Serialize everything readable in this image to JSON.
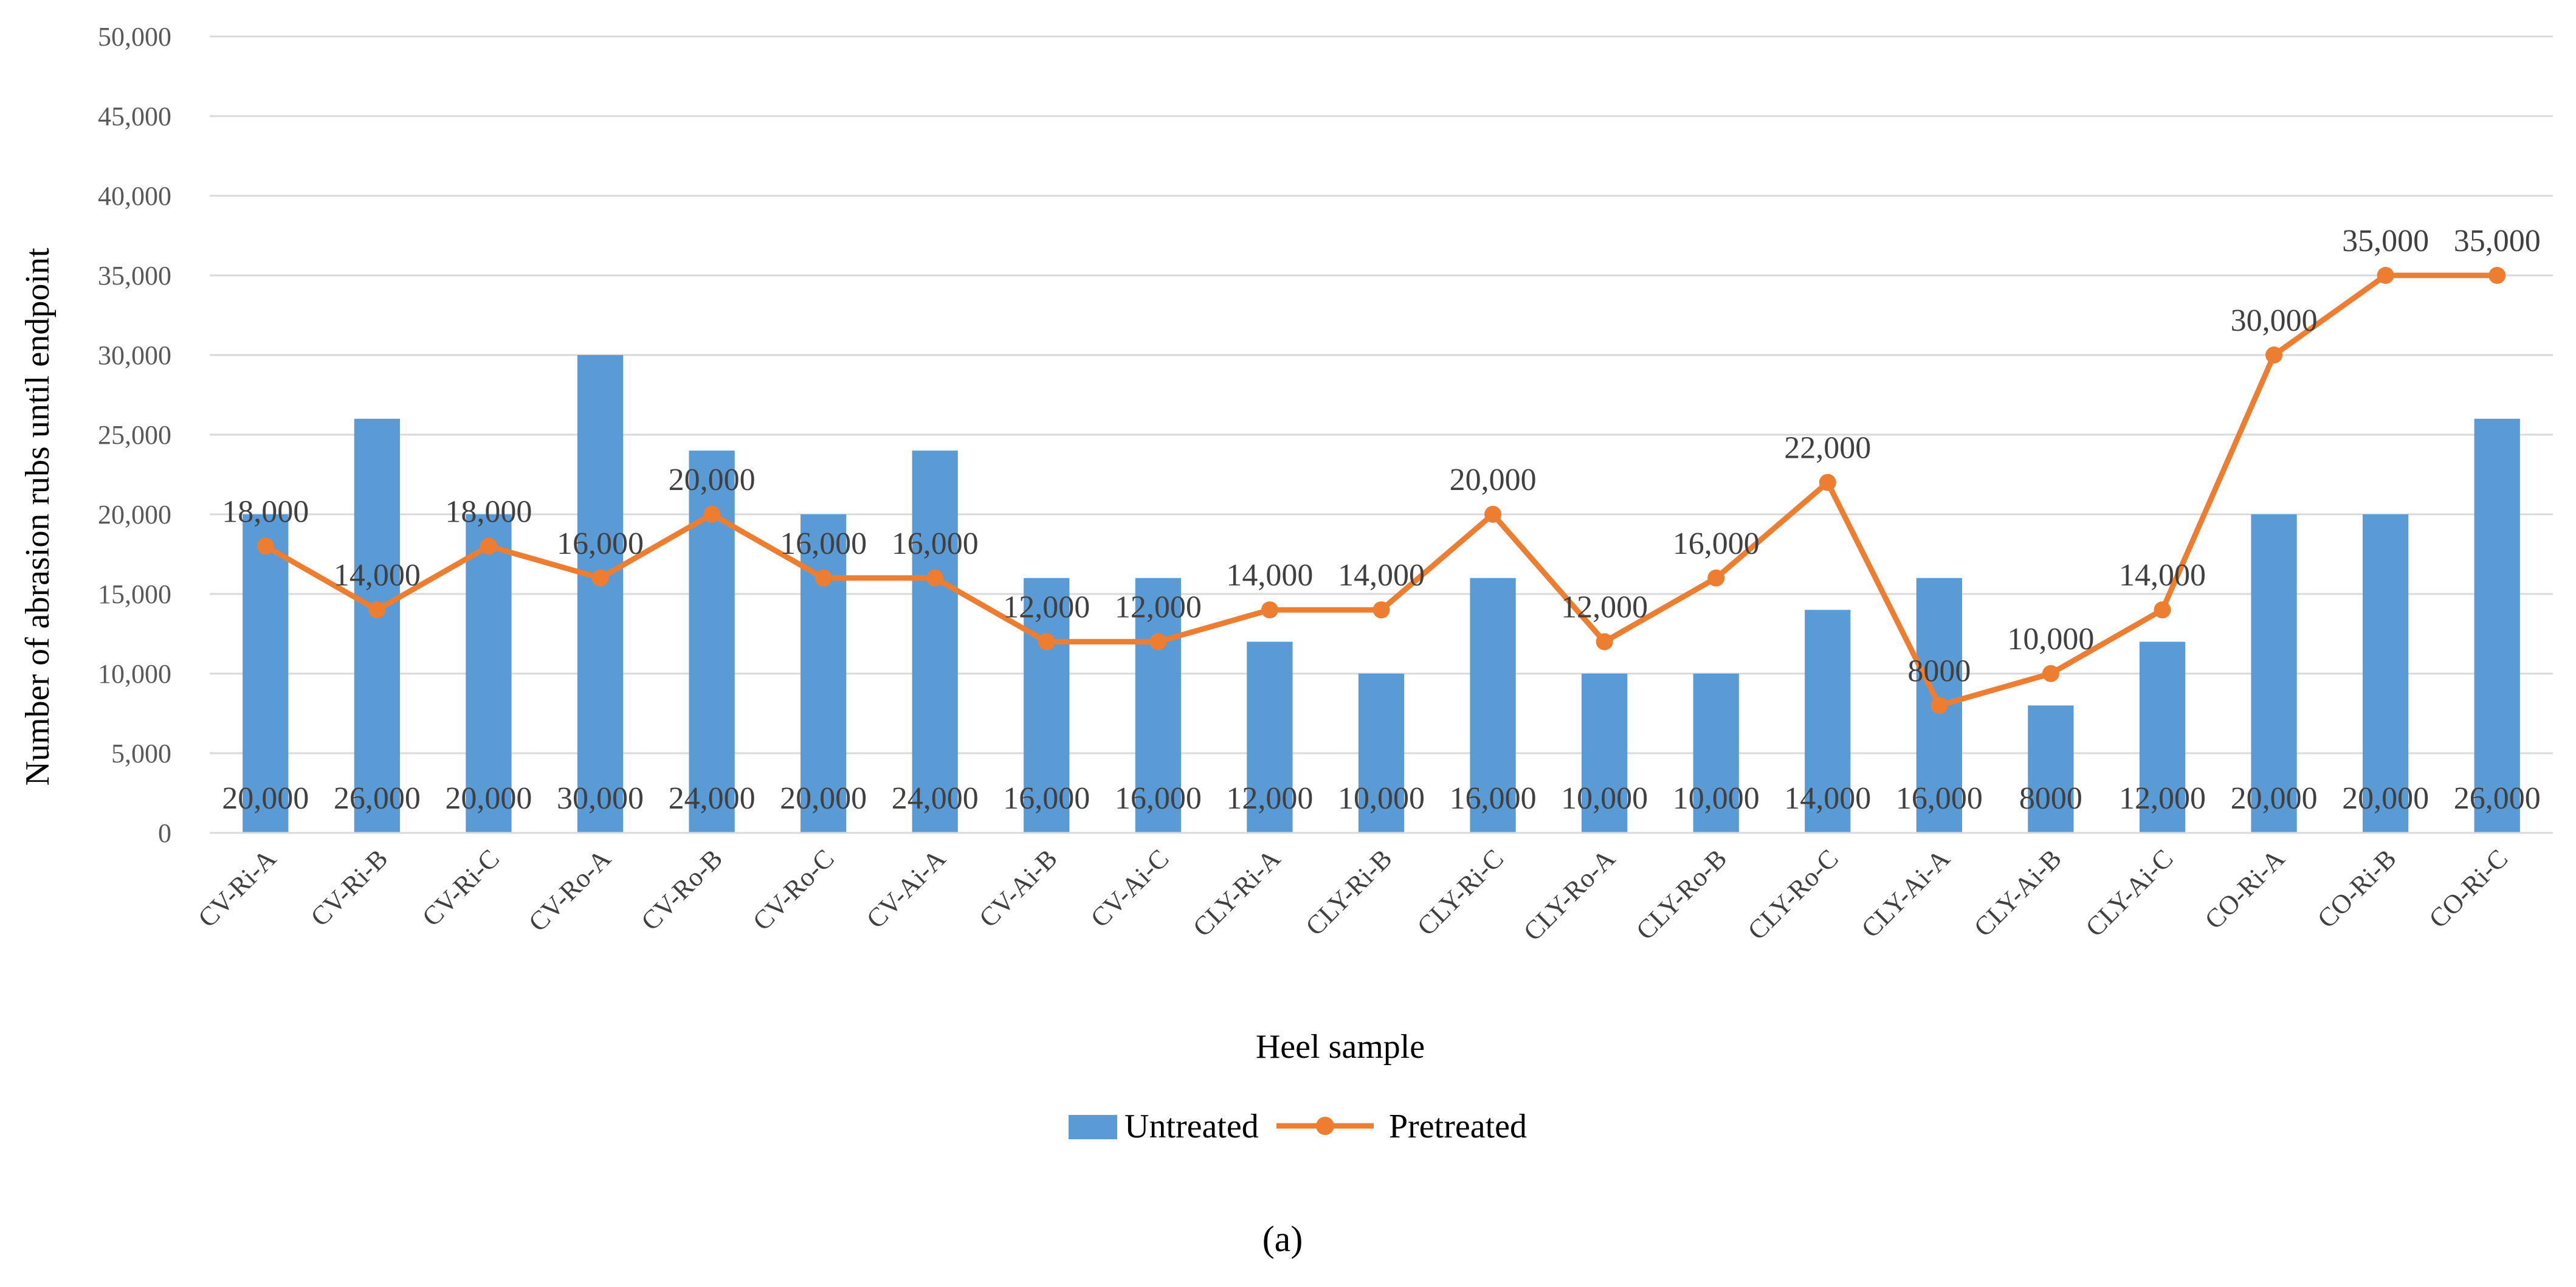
{
  "chart_data": {
    "type": "bar",
    "title": "",
    "xlabel": "Heel sample",
    "ylabel": "Number of abrasion rubs until endpoint",
    "ylim": [
      0,
      50000
    ],
    "yticks": [
      0,
      5000,
      10000,
      15000,
      20000,
      25000,
      30000,
      35000,
      40000,
      45000,
      50000
    ],
    "ytick_labels": [
      "0",
      "5,000",
      "10,000",
      "15,000",
      "20,000",
      "25,000",
      "30,000",
      "35,000",
      "40,000",
      "45,000",
      "50,000"
    ],
    "grid": true,
    "legend_position": "bottom",
    "categories": [
      "CV-Ri-A",
      "CV-Ri-B",
      "CV-Ri-C",
      "CV-Ro-A",
      "CV-Ro-B",
      "CV-Ro-C",
      "CV-Ai-A",
      "CV-Ai-B",
      "CV-Ai-C",
      "CLY-Ri-A",
      "CLY-Ri-B",
      "CLY-Ri-C",
      "CLY-Ro-A",
      "CLY-Ro-B",
      "CLY-Ro-C",
      "CLY-Ai-A",
      "CLY-Ai-B",
      "CLY-Ai-C",
      "CO-Ri-A",
      "CO-Ri-B",
      "CO-Ri-C"
    ],
    "series": [
      {
        "name": "Untreated",
        "kind": "bar",
        "color": "#5B9BD5",
        "values": [
          20000,
          26000,
          20000,
          30000,
          24000,
          20000,
          24000,
          16000,
          16000,
          12000,
          10000,
          16000,
          10000,
          10000,
          14000,
          16000,
          8000,
          12000,
          20000,
          20000,
          26000
        ],
        "labels": [
          "20,000",
          "26,000",
          "20,000",
          "30,000",
          "24,000",
          "20,000",
          "24,000",
          "16,000",
          "16,000",
          "12,000",
          "10,000",
          "16,000",
          "10,000",
          "10,000",
          "14,000",
          "16,000",
          "8000",
          "12,000",
          "20,000",
          "20,000",
          "26,000"
        ]
      },
      {
        "name": "Pretreated",
        "kind": "line",
        "color": "#ED7D31",
        "values": [
          18000,
          14000,
          18000,
          16000,
          20000,
          16000,
          16000,
          12000,
          12000,
          14000,
          14000,
          20000,
          12000,
          16000,
          22000,
          8000,
          10000,
          14000,
          30000,
          35000,
          35000
        ],
        "labels": [
          "18,000",
          "14,000",
          "18,000",
          "16,000",
          "20,000",
          "16,000",
          "16,000",
          "12,000",
          "12,000",
          "14,000",
          "14,000",
          "20,000",
          "12,000",
          "16,000",
          "22,000",
          "8000",
          "10,000",
          "14,000",
          "30,000",
          "35,000",
          "35,000"
        ]
      }
    ],
    "caption": "(a)"
  }
}
